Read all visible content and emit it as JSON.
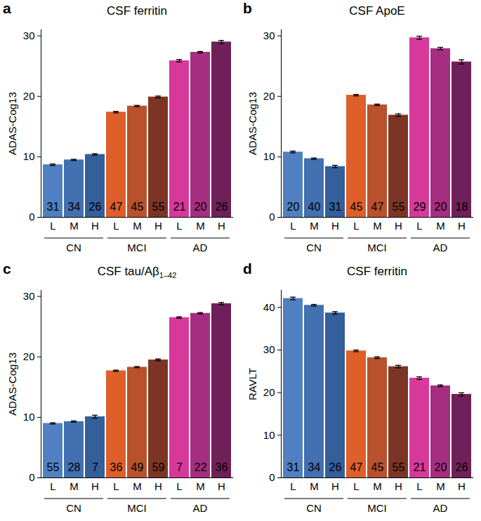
{
  "chart_data": [
    {
      "type": "bar",
      "panel_label": "a",
      "title": "CSF ferritin",
      "ylabel": "ADAS-Cog13",
      "categories": [
        "L",
        "M",
        "H",
        "L",
        "M",
        "H",
        "L",
        "M",
        "H"
      ],
      "group": [
        "CN",
        "CN",
        "CN",
        "MCI",
        "MCI",
        "MCI",
        "AD",
        "AD",
        "AD"
      ],
      "values": [
        8.7,
        9.5,
        10.4,
        17.4,
        18.4,
        19.9,
        25.9,
        27.3,
        29.0
      ],
      "errors": [
        0.12,
        0.1,
        0.12,
        0.12,
        0.1,
        0.15,
        0.2,
        0.12,
        0.25
      ],
      "n": [
        31,
        34,
        26,
        47,
        45,
        55,
        21,
        20,
        26
      ],
      "colors": [
        "#5080c1",
        "#4270b0",
        "#335f9b",
        "#de5f2a",
        "#b9512d",
        "#7c3525",
        "#d7399b",
        "#a62e80",
        "#6f2058"
      ],
      "ylim": [
        0,
        31
      ],
      "yticks": [
        0,
        10,
        20,
        30
      ]
    },
    {
      "type": "bar",
      "panel_label": "b",
      "title": "CSF ApoE",
      "ylabel": "ADAS-Cog13",
      "categories": [
        "L",
        "M",
        "H",
        "L",
        "M",
        "H",
        "L",
        "M",
        "H"
      ],
      "group": [
        "CN",
        "CN",
        "CN",
        "MCI",
        "MCI",
        "MCI",
        "AD",
        "AD",
        "AD"
      ],
      "values": [
        10.8,
        9.7,
        8.4,
        20.2,
        18.6,
        16.9,
        29.7,
        27.9,
        25.7
      ],
      "errors": [
        0.15,
        0.1,
        0.2,
        0.12,
        0.12,
        0.2,
        0.25,
        0.2,
        0.35
      ],
      "n": [
        20,
        40,
        31,
        45,
        47,
        55,
        29,
        20,
        18
      ],
      "colors": [
        "#5080c1",
        "#4270b0",
        "#335f9b",
        "#de5f2a",
        "#b9512d",
        "#7c3525",
        "#d7399b",
        "#a62e80",
        "#6f2058"
      ],
      "ylim": [
        0,
        31
      ],
      "yticks": [
        0,
        10,
        20,
        30
      ]
    },
    {
      "type": "bar",
      "panel_label": "c",
      "title": "CSF tau/Aβ",
      "title_subscript": "1–42",
      "ylabel": "ADAS-Cog13",
      "categories": [
        "L",
        "M",
        "H",
        "L",
        "M",
        "H",
        "L",
        "M",
        "H"
      ],
      "group": [
        "CN",
        "CN",
        "CN",
        "MCI",
        "MCI",
        "MCI",
        "AD",
        "AD",
        "AD"
      ],
      "values": [
        9.0,
        9.3,
        10.1,
        17.7,
        18.3,
        19.5,
        26.5,
        27.2,
        28.8
      ],
      "errors": [
        0.1,
        0.1,
        0.25,
        0.1,
        0.1,
        0.15,
        0.12,
        0.12,
        0.2
      ],
      "n": [
        55,
        28,
        7,
        36,
        49,
        59,
        7,
        22,
        36
      ],
      "colors": [
        "#5080c1",
        "#4270b0",
        "#335f9b",
        "#de5f2a",
        "#b9512d",
        "#7c3525",
        "#d7399b",
        "#a62e80",
        "#6f2058"
      ],
      "ylim": [
        0,
        31
      ],
      "yticks": [
        0,
        10,
        20,
        30
      ]
    },
    {
      "type": "bar",
      "panel_label": "d",
      "title": "CSF ferritin",
      "ylabel": "RAVLT",
      "categories": [
        "L",
        "M",
        "H",
        "L",
        "M",
        "H",
        "L",
        "M",
        "H"
      ],
      "group": [
        "CN",
        "CN",
        "CN",
        "MCI",
        "MCI",
        "MCI",
        "AD",
        "AD",
        "AD"
      ],
      "values": [
        42.1,
        40.5,
        38.7,
        29.8,
        28.2,
        26.1,
        23.4,
        21.6,
        19.6
      ],
      "errors": [
        0.3,
        0.2,
        0.3,
        0.2,
        0.2,
        0.3,
        0.3,
        0.2,
        0.35
      ],
      "n": [
        31,
        34,
        26,
        47,
        45,
        55,
        21,
        20,
        26
      ],
      "colors": [
        "#5080c1",
        "#4270b0",
        "#335f9b",
        "#de5f2a",
        "#b9512d",
        "#7c3525",
        "#d7399b",
        "#a62e80",
        "#6f2058"
      ],
      "ylim": [
        0,
        44
      ],
      "yticks": [
        0,
        10,
        20,
        30,
        40
      ]
    }
  ]
}
